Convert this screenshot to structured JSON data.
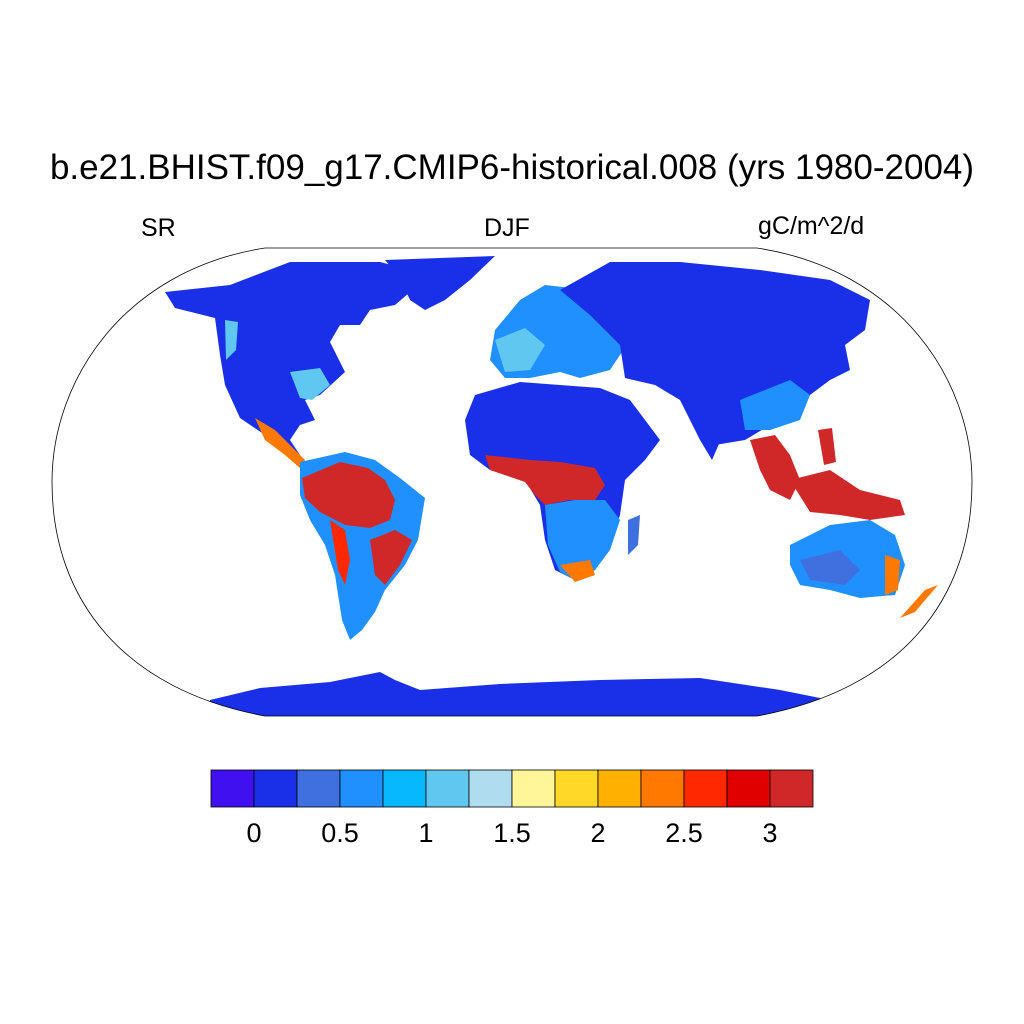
{
  "title": "b.e21.BHIST.f09_g17.CMIP6-historical.008 (yrs 1980-2004)",
  "left_label": "SR",
  "center_label": "DJF",
  "right_label": "gC/m^2/d",
  "colorbar": {
    "colors": [
      "#4010f0",
      "#1a30e8",
      "#4070e0",
      "#2090ff",
      "#08b8ff",
      "#60c8f0",
      "#b0dcf0",
      "#fff69a",
      "#ffd828",
      "#ffb000",
      "#ff7800",
      "#ff2800",
      "#e00000",
      "#d02828"
    ],
    "labels": [
      "0",
      "0.5",
      "1",
      "1.5",
      "2",
      "2.5",
      "3"
    ]
  },
  "palette": {
    "low": "#1a30e8",
    "mid_blue": "#4070e0",
    "light_blue": "#60c8f0",
    "yellow": "#ffd828",
    "orange": "#ff7800",
    "high": "#d02828",
    "ocean": "#ffffff"
  }
}
